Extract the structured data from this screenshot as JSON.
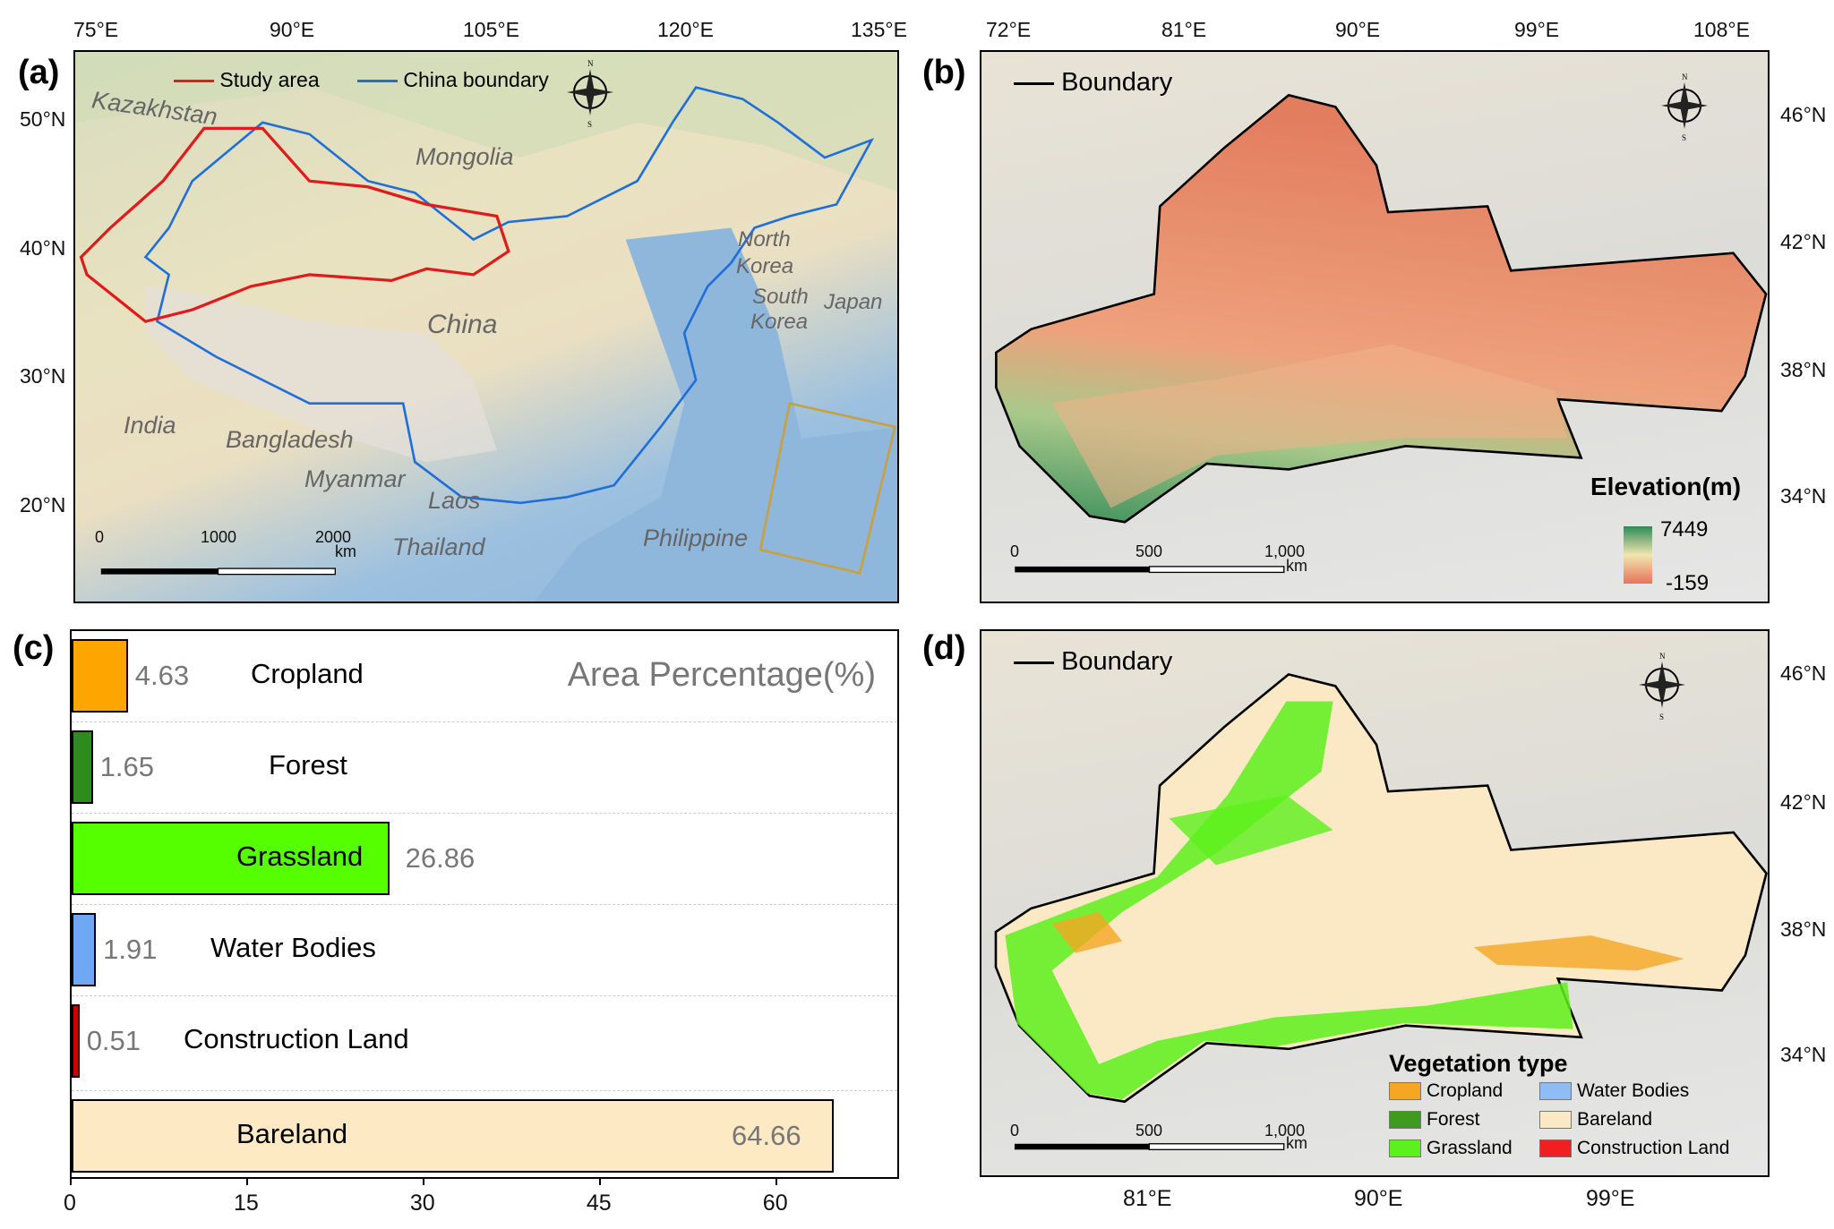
{
  "panels": {
    "a": {
      "label": "(a)",
      "legend": {
        "study_area": "Study area",
        "china_boundary": "China boundary"
      },
      "lon_ticks": [
        "75°E",
        "90°E",
        "105°E",
        "120°E",
        "135°E"
      ],
      "lat_ticks": [
        "50°N",
        "40°N",
        "30°N",
        "20°N"
      ],
      "countries": [
        "Kazakhstan",
        "Mongolia",
        "North",
        "Korea",
        "South",
        "Korea",
        "Japan",
        "China",
        "India",
        "Bangladesh",
        "Myanmar",
        "Laos",
        "Thailand",
        "Philippine"
      ],
      "scale": {
        "labels": [
          "0",
          "1000",
          "2000"
        ],
        "unit": "km"
      },
      "compass": [
        "N",
        "S",
        "W",
        "E"
      ],
      "colors": {
        "study_area": "#e01b1b",
        "china_boundary": "#1f6fd8",
        "inset": "#c8a040"
      }
    },
    "b": {
      "label": "(b)",
      "legend": "Boundary",
      "lon_ticks": [
        "72°E",
        "81°E",
        "90°E",
        "99°E",
        "108°E"
      ],
      "lat_ticks": [
        "46°N",
        "42°N",
        "38°N",
        "34°N"
      ],
      "elevation": {
        "title": "Elevation(m)",
        "max": "7449",
        "min": "-159",
        "colors": [
          "#2e8b57",
          "#f2e6b0",
          "#e8735a"
        ]
      },
      "scale": {
        "labels": [
          "0",
          "500",
          "1,000"
        ],
        "unit": "km"
      },
      "compass": [
        "N",
        "S",
        "W",
        "E"
      ]
    },
    "c": {
      "label": "(c)",
      "title": "Area Percentage(%)"
    },
    "d": {
      "label": "(d)",
      "legend": "Boundary",
      "lon_ticks": [
        "81°E",
        "90°E",
        "99°E"
      ],
      "lat_ticks": [
        "46°N",
        "42°N",
        "38°N",
        "34°N"
      ],
      "veg_title": "Vegetation type",
      "veg_items": [
        {
          "name": "Cropland",
          "color": "#f5a623"
        },
        {
          "name": "Water Bodies",
          "color": "#8ebcf5"
        },
        {
          "name": "Forest",
          "color": "#3f9a20"
        },
        {
          "name": "Bareland",
          "color": "#fbe9c6"
        },
        {
          "name": "Grassland",
          "color": "#5cf01c"
        },
        {
          "name": "Construction Land",
          "color": "#f02020"
        }
      ],
      "scale": {
        "labels": [
          "0",
          "500",
          "1,000"
        ],
        "unit": "km"
      },
      "compass": [
        "N",
        "S",
        "W",
        "E"
      ]
    }
  },
  "chart_data": {
    "type": "bar",
    "orientation": "horizontal",
    "title": "Area Percentage(%)",
    "categories": [
      "Cropland",
      "Forest",
      "Grassland",
      "Water Bodies",
      "Construction Land",
      "Bareland"
    ],
    "values": [
      4.63,
      1.65,
      26.86,
      1.91,
      0.51,
      64.66
    ],
    "value_labels": [
      "4.63",
      "1.65",
      "26.86",
      "1.91",
      "0.51",
      "64.66"
    ],
    "colors": [
      "#ffa500",
      "#2e8b1e",
      "#55ff00",
      "#6ea8f5",
      "#cc0000",
      "#fde9c4"
    ],
    "xticks": [
      "0",
      "15",
      "30",
      "45",
      "60"
    ],
    "xlim": [
      0,
      70
    ],
    "grid": "dashed horizontal separators"
  }
}
